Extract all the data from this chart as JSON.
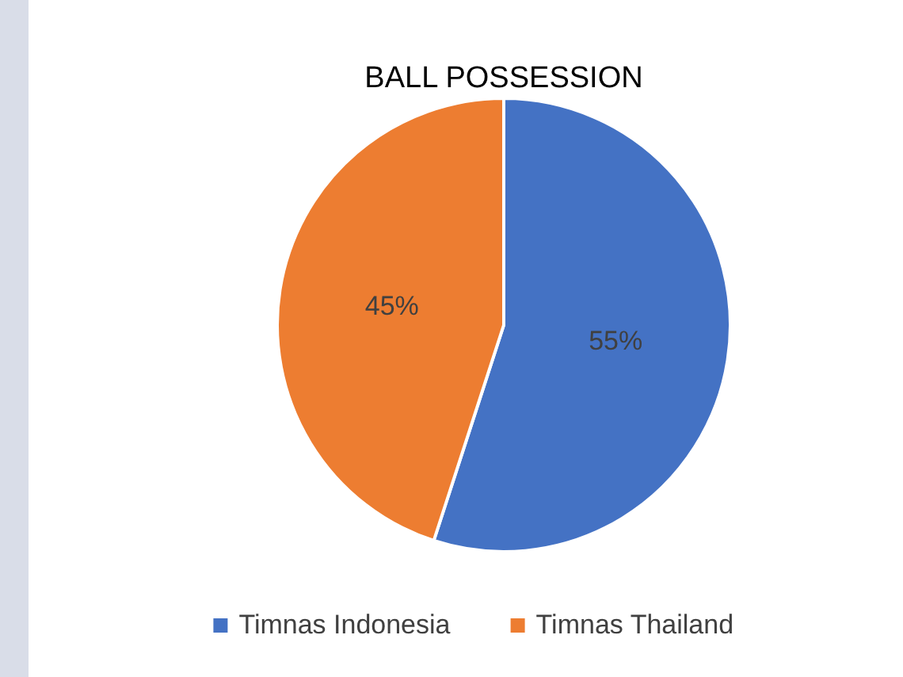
{
  "chart_data": {
    "type": "pie",
    "title": "BALL POSSESSION",
    "categories": [
      "Timnas Indonesia",
      "Timnas Thailand"
    ],
    "values": [
      55,
      45
    ],
    "colors": [
      "#4472c4",
      "#ed7d31"
    ],
    "value_labels": [
      "55%",
      "45%"
    ],
    "legend": "bottom"
  }
}
